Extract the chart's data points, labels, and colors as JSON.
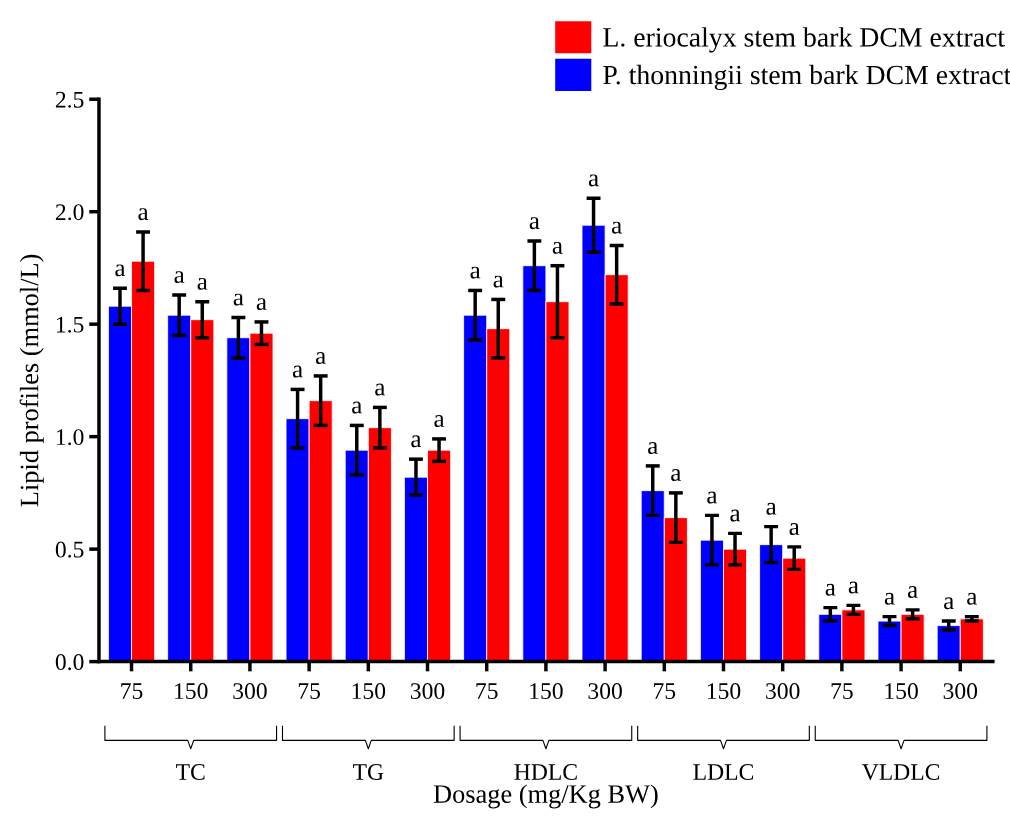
{
  "chart_data": {
    "type": "bar",
    "categories": [
      "75",
      "150",
      "300",
      "75",
      "150",
      "300",
      "75",
      "150",
      "300",
      "75",
      "150",
      "300",
      "75",
      "150",
      "300"
    ],
    "series": [
      {
        "name": "P. thonningii stem bark DCM extract",
        "color": "#0000ff",
        "values": [
          1.58,
          1.54,
          1.44,
          1.08,
          0.94,
          0.82,
          1.54,
          1.76,
          1.94,
          0.76,
          0.54,
          0.52,
          0.21,
          0.18,
          0.16
        ],
        "errors": [
          0.08,
          0.09,
          0.09,
          0.13,
          0.11,
          0.08,
          0.11,
          0.11,
          0.12,
          0.11,
          0.11,
          0.08,
          0.03,
          0.02,
          0.02
        ],
        "value_labels": [
          "a",
          "a",
          "a",
          "a",
          "a",
          "a",
          "a",
          "a",
          "a",
          "a",
          "a",
          "a",
          "a",
          "a",
          "a"
        ]
      },
      {
        "name": "L. eriocalyx stem bark DCM extract",
        "color": "#ff0000",
        "values": [
          1.78,
          1.52,
          1.46,
          1.16,
          1.04,
          0.94,
          1.48,
          1.6,
          1.72,
          0.64,
          0.5,
          0.46,
          0.23,
          0.21,
          0.19
        ],
        "errors": [
          0.13,
          0.08,
          0.05,
          0.11,
          0.09,
          0.05,
          0.13,
          0.16,
          0.13,
          0.11,
          0.07,
          0.05,
          0.02,
          0.02,
          0.01
        ],
        "value_labels": [
          "a",
          "a",
          "a",
          "a",
          "a",
          "a",
          "a",
          "a",
          "a",
          "a",
          "a",
          "a",
          "a",
          "a",
          "a"
        ]
      }
    ],
    "annotations": [
      "TC",
      "TG",
      "HDLC",
      "LDLC",
      "VLDLC"
    ],
    "xlabel": "Dosage (mg/Kg BW)",
    "ylabel": "Lipid profiles (mmol/L)",
    "ylim": [
      0,
      2.5
    ],
    "yticks": [
      {
        "value": 0,
        "label": "0.0"
      },
      {
        "value": 0.5,
        "label": "0.5"
      },
      {
        "value": 1,
        "label": "1.0"
      },
      {
        "value": 1.5,
        "label": "1.5"
      },
      {
        "value": 2,
        "label": "2.0"
      },
      {
        "value": 2.5,
        "label": "2.5"
      }
    ],
    "legend": "top right",
    "grid": false
  }
}
